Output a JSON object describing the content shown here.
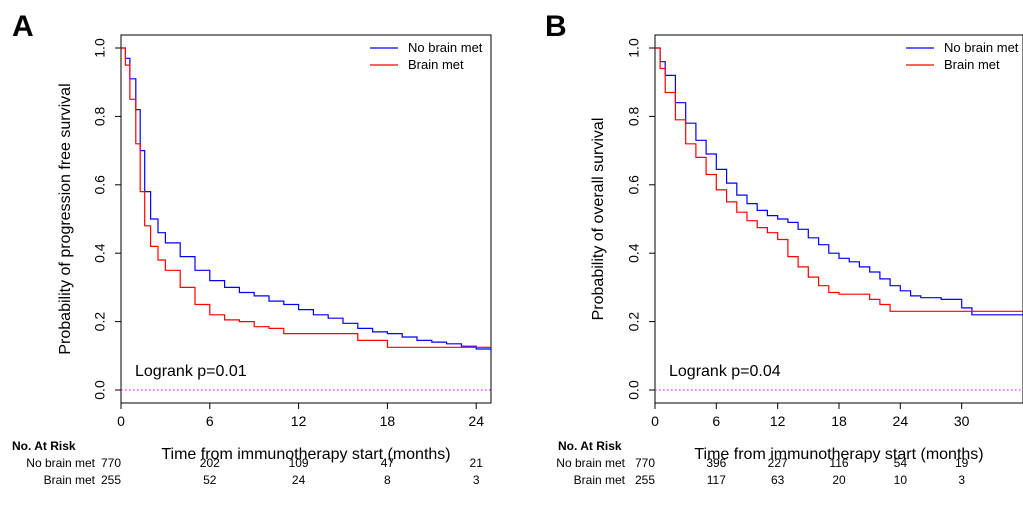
{
  "chart_data": [
    {
      "type": "line",
      "panel_label": "A",
      "xlabel": "Time from immunotherapy start (months)",
      "ylabel": "Probability of progression free survival",
      "xlim": [
        0,
        25
      ],
      "ylim": [
        0,
        1
      ],
      "xticks": [
        0,
        6,
        12,
        18,
        24
      ],
      "yticks": [
        0.0,
        0.2,
        0.4,
        0.6,
        0.8,
        1.0
      ],
      "annotation": "Logrank p=0.01",
      "legend_position": "top-right",
      "series": [
        {
          "name": "No brain met",
          "color": "#0000ff",
          "x": [
            0,
            0.3,
            0.6,
            1.0,
            1.3,
            1.6,
            2.0,
            2.5,
            3.0,
            4.0,
            5.0,
            6.0,
            7.0,
            8.0,
            9.0,
            10.0,
            11.0,
            12.0,
            13.0,
            14.0,
            15.0,
            16.0,
            17.0,
            18.0,
            19.0,
            20.0,
            21.0,
            22.0,
            23.0,
            24.0,
            25.0
          ],
          "y": [
            1.0,
            0.97,
            0.91,
            0.82,
            0.7,
            0.58,
            0.5,
            0.46,
            0.43,
            0.39,
            0.35,
            0.32,
            0.3,
            0.285,
            0.275,
            0.26,
            0.25,
            0.235,
            0.22,
            0.21,
            0.195,
            0.18,
            0.17,
            0.165,
            0.155,
            0.145,
            0.14,
            0.135,
            0.128,
            0.12,
            0.108
          ]
        },
        {
          "name": "Brain met",
          "color": "#ff0000",
          "x": [
            0,
            0.3,
            0.6,
            1.0,
            1.3,
            1.6,
            2.0,
            2.5,
            3.0,
            4.0,
            5.0,
            6.0,
            7.0,
            8.0,
            9.0,
            10.0,
            11.0,
            12.0,
            14.0,
            16.0,
            18.0,
            20.0,
            22.0,
            24.0,
            25.0
          ],
          "y": [
            1.0,
            0.95,
            0.85,
            0.72,
            0.58,
            0.48,
            0.42,
            0.38,
            0.35,
            0.3,
            0.25,
            0.22,
            0.205,
            0.2,
            0.185,
            0.18,
            0.165,
            0.165,
            0.165,
            0.145,
            0.125,
            0.125,
            0.125,
            0.125,
            0.125
          ]
        }
      ],
      "at_risk": {
        "heading": "No. At Risk",
        "times": [
          0,
          6,
          12,
          18,
          24
        ],
        "rows": [
          {
            "label": "No brain met",
            "values": [
              "770",
              "202",
              "109",
              "47",
              "21"
            ]
          },
          {
            "label": "Brain met",
            "values": [
              "255",
              "52",
              "24",
              "8",
              "3"
            ]
          }
        ]
      }
    },
    {
      "type": "line",
      "panel_label": "B",
      "xlabel": "Time from immunotherapy start (months)",
      "ylabel": "Probability of overall survival",
      "xlim": [
        0,
        36
      ],
      "ylim": [
        0,
        1
      ],
      "xticks": [
        0,
        6,
        12,
        18,
        24,
        30
      ],
      "yticks": [
        0.0,
        0.2,
        0.4,
        0.6,
        0.8,
        1.0
      ],
      "annotation": "Logrank p=0.04",
      "legend_position": "top-right",
      "series": [
        {
          "name": "No brain met",
          "color": "#0000ff",
          "x": [
            0,
            0.5,
            1,
            2,
            3,
            4,
            5,
            6,
            7,
            8,
            9,
            10,
            11,
            12,
            13,
            14,
            15,
            16,
            17,
            18,
            19,
            20,
            21,
            22,
            23,
            24,
            25,
            26,
            27,
            28,
            29,
            30,
            31,
            32,
            33,
            34,
            35,
            36
          ],
          "y": [
            1.0,
            0.96,
            0.92,
            0.84,
            0.78,
            0.73,
            0.69,
            0.645,
            0.605,
            0.57,
            0.545,
            0.525,
            0.51,
            0.5,
            0.49,
            0.47,
            0.445,
            0.425,
            0.4,
            0.385,
            0.375,
            0.36,
            0.345,
            0.325,
            0.305,
            0.29,
            0.275,
            0.27,
            0.27,
            0.265,
            0.265,
            0.24,
            0.22,
            0.22,
            0.22,
            0.22,
            0.22,
            0.22
          ]
        },
        {
          "name": "Brain met",
          "color": "#ff0000",
          "x": [
            0,
            0.5,
            1,
            2,
            3,
            4,
            5,
            6,
            7,
            8,
            9,
            10,
            11,
            12,
            13,
            14,
            15,
            16,
            17,
            18,
            19,
            20,
            21,
            22,
            23,
            24,
            36
          ],
          "y": [
            1.0,
            0.94,
            0.87,
            0.79,
            0.72,
            0.68,
            0.63,
            0.585,
            0.55,
            0.52,
            0.495,
            0.475,
            0.46,
            0.44,
            0.39,
            0.36,
            0.33,
            0.305,
            0.285,
            0.28,
            0.28,
            0.28,
            0.265,
            0.25,
            0.23,
            0.23,
            0.23
          ]
        }
      ],
      "at_risk": {
        "heading": "No. At Risk",
        "times": [
          0,
          6,
          12,
          18,
          24,
          30
        ],
        "rows": [
          {
            "label": "No brain met",
            "values": [
              "770",
              "396",
              "227",
              "116",
              "54",
              "19"
            ]
          },
          {
            "label": "Brain met",
            "values": [
              "255",
              "117",
              "63",
              "20",
              "10",
              "3"
            ]
          }
        ]
      }
    }
  ]
}
